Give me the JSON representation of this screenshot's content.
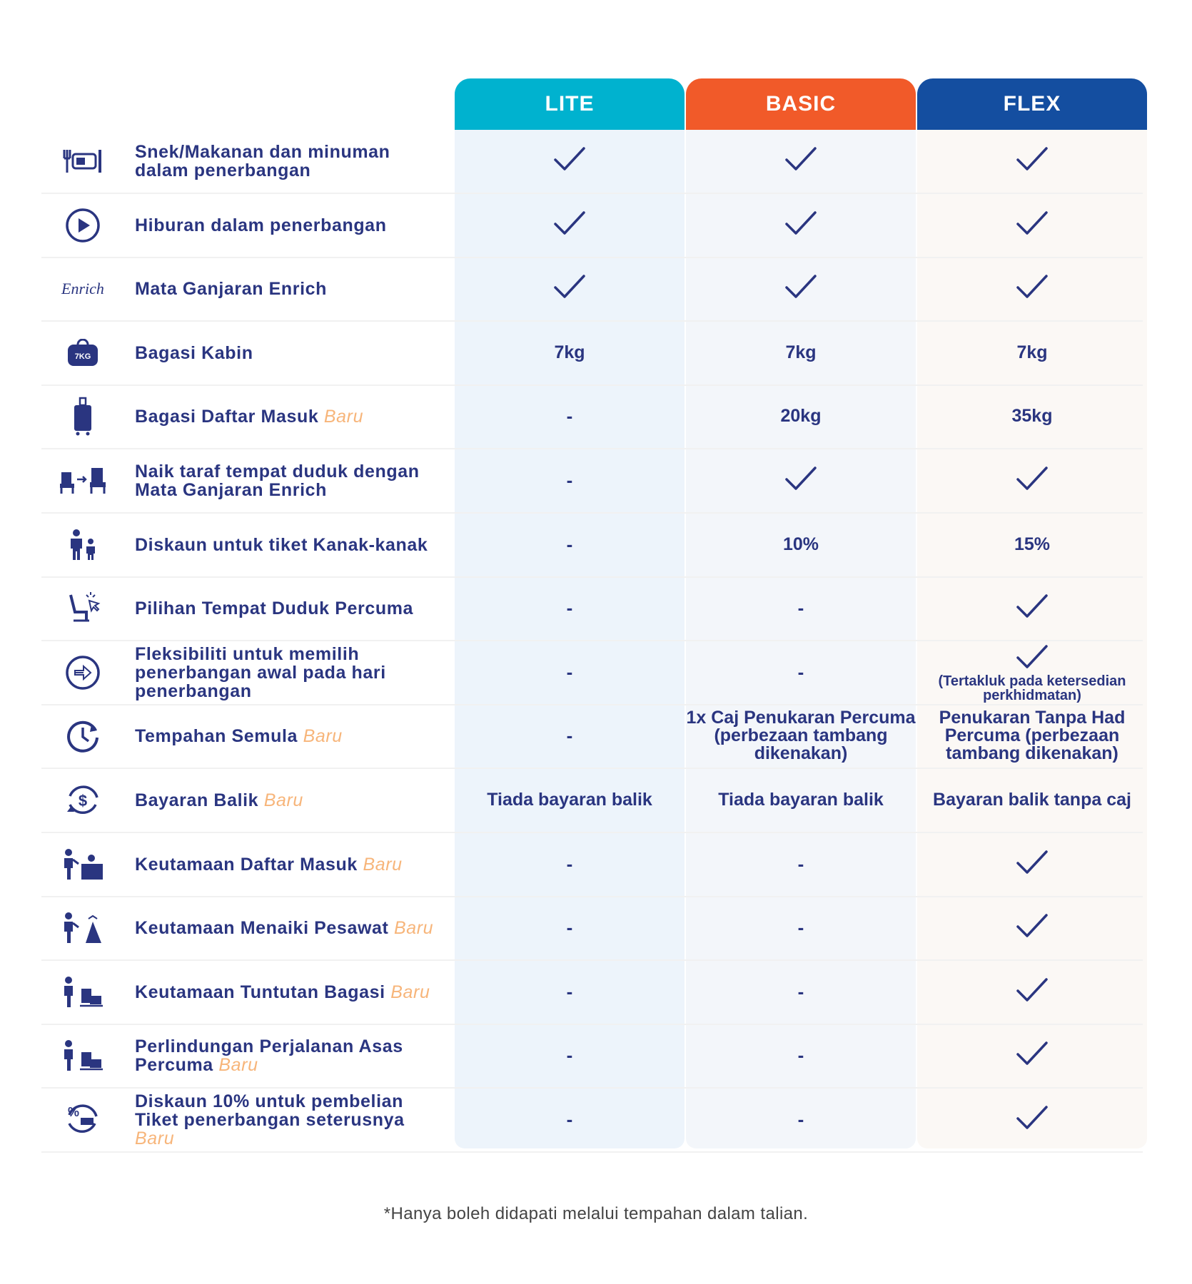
{
  "tiers": [
    {
      "name": "LITE",
      "color": "#00b2cf"
    },
    {
      "name": "BASIC",
      "color": "#f15a29"
    },
    {
      "name": "FLEX",
      "color": "#144ea0"
    }
  ],
  "new_tag": "Baru",
  "rows": [
    {
      "icon": "meal-icon",
      "label": "Snek/Makanan dan minuman dalam penerbangan",
      "cells": [
        "check",
        "check",
        "check"
      ]
    },
    {
      "icon": "play-icon",
      "label": "Hiburan dalam penerbangan",
      "cells": [
        "check",
        "check",
        "check"
      ]
    },
    {
      "icon": "enrich-logo-icon",
      "icon_text": "Enrich",
      "label": "Mata Ganjaran Enrich",
      "cells": [
        "check",
        "check",
        "check"
      ]
    },
    {
      "icon": "cabin-bag-icon",
      "icon_text": "7KG",
      "label": "Bagasi Kabin",
      "cells": [
        "7kg",
        "7kg",
        "7kg"
      ]
    },
    {
      "icon": "luggage-icon",
      "label": "Bagasi Daftar Masuk",
      "label_new": true,
      "cells": [
        "-",
        "20kg",
        "35kg"
      ]
    },
    {
      "icon": "seat-upgrade-icon",
      "label": "Naik taraf tempat duduk dengan Mata Ganjaran Enrich",
      "cells": [
        "-",
        "check",
        "check"
      ]
    },
    {
      "icon": "family-icon",
      "label": "Diskaun untuk tiket Kanak-kanak",
      "cells": [
        "-",
        "10%",
        "15%"
      ]
    },
    {
      "icon": "seat-select-icon",
      "label": "Pilihan Tempat Duduk Percuma",
      "cells": [
        "-",
        "-",
        "check"
      ]
    },
    {
      "icon": "early-flight-icon",
      "label": "Fleksibiliti untuk memilih penerbangan awal pada hari penerbangan",
      "cells": [
        "-",
        "-",
        "check"
      ],
      "flex_note": "(Tertakluk pada ketersedian perkhidmatan)"
    },
    {
      "icon": "rebook-clock-icon",
      "label": "Tempahan Semula",
      "label_new": true,
      "cells": [
        "-",
        "1x Caj Penukaran Percuma (perbezaan tambang dikenakan)",
        "Penukaran Tanpa Had Percuma (perbezaan tambang dikenakan)"
      ]
    },
    {
      "icon": "refund-icon",
      "label": "Bayaran Balik",
      "label_new": true,
      "cells": [
        "Tiada bayaran balik",
        "Tiada bayaran balik",
        "Bayaran balik tanpa caj"
      ]
    },
    {
      "icon": "priority-checkin-icon",
      "label": "Keutamaan Daftar Masuk",
      "label_new": true,
      "cells": [
        "-",
        "-",
        "check"
      ]
    },
    {
      "icon": "priority-boarding-icon",
      "label": "Keutamaan Menaiki Pesawat",
      "label_new": true,
      "cells": [
        "-",
        "-",
        "check"
      ]
    },
    {
      "icon": "priority-baggage-icon",
      "label": "Keutamaan Tuntutan Bagasi",
      "label_new": true,
      "cells": [
        "-",
        "-",
        "check"
      ]
    },
    {
      "icon": "travel-protection-icon",
      "label": "Perlindungan Perjalanan Asas Percuma",
      "label_new": true,
      "cells": [
        "-",
        "-",
        "check"
      ]
    },
    {
      "icon": "discount-ticket-icon",
      "label": "Diskaun 10% untuk pembelian Tiket penerbangan seterusnya",
      "label_new": true,
      "cells": [
        "-",
        "-",
        "check"
      ]
    }
  ],
  "footnote": "*Hanya boleh didapati melalui tempahan dalam talian.",
  "colors": {
    "text": "#2a3580",
    "new_tag": "#f7b57a",
    "lite_bg": "#edf4fb",
    "basic_bg": "#f3f6fa",
    "flex_bg": "#fbf8f5"
  }
}
